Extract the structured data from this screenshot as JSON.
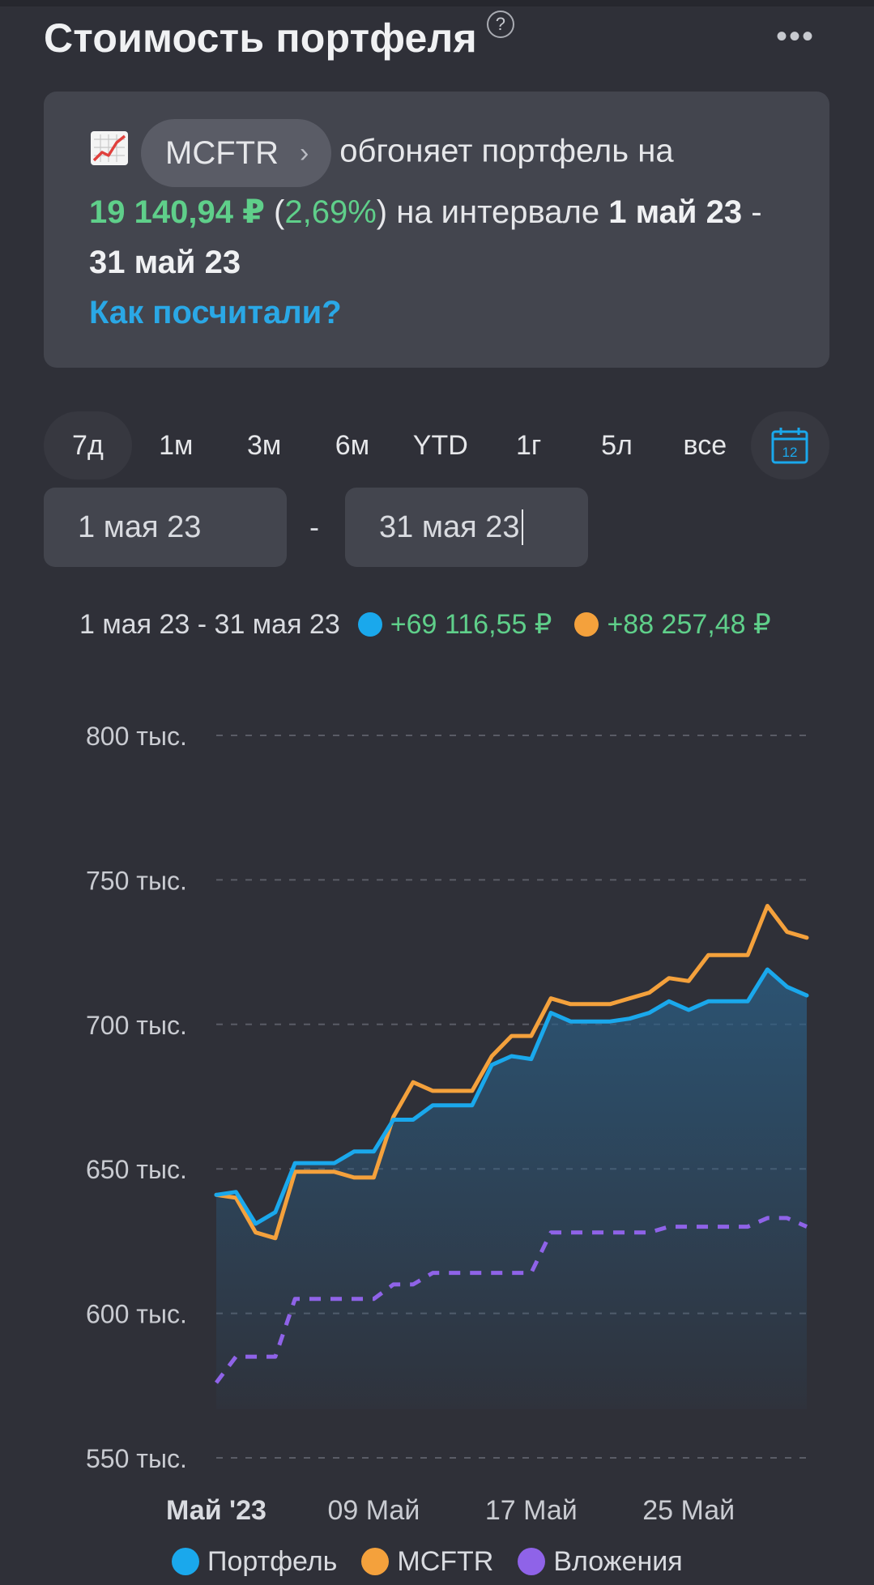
{
  "header": {
    "title": "Стоимость портфеля",
    "help_glyph": "?",
    "more_glyph": "•••"
  },
  "card": {
    "chip_label": "MCFTR",
    "text_overtakes": "обгоняет портфель на",
    "diff_amount": "19 140,94 ₽",
    "paren_open": "(",
    "diff_percent": "2,69%",
    "paren_close": ")",
    "text_interval": "на интервале",
    "interval_start": "1 май 23",
    "interval_dash": "-",
    "interval_end": "31 май 23",
    "how_link": "Как посчитали?"
  },
  "periods": [
    "7д",
    "1м",
    "3м",
    "6м",
    "YTD",
    "1г",
    "5л",
    "все"
  ],
  "calendar": {
    "day": "12",
    "icon": "calendar-icon"
  },
  "date_range": {
    "from": "1 мая 23",
    "separator": "-",
    "to": "31 мая 23"
  },
  "summary": {
    "range": "1 мая 23 - 31 мая 23",
    "portfolio_change": "+69 116,55 ₽",
    "mcftr_change": "+88 257,48 ₽"
  },
  "colors": {
    "portfolio": "#1aa8ec",
    "mcftr": "#f4a13c",
    "investments": "#8f63e8",
    "positive": "#5fcf8a",
    "accent": "#2aa8e6"
  },
  "chart_data": {
    "type": "line",
    "y_ticks": [
      "800 тыс.",
      "750 тыс.",
      "700 тыс.",
      "650 тыс.",
      "600 тыс.",
      "550 тыс."
    ],
    "y_tick_values": [
      800000,
      750000,
      700000,
      650000,
      600000,
      550000
    ],
    "ylim": [
      550000,
      800000
    ],
    "x_ticks": [
      "Май '23",
      "09 Май",
      "17 Май",
      "25 Май"
    ],
    "x_tick_days": [
      1,
      9,
      17,
      25
    ],
    "x_range_days": [
      1,
      31
    ],
    "grid": true,
    "series": [
      {
        "name": "Портфель",
        "x": [
          1,
          2,
          3,
          4,
          5,
          6,
          7,
          8,
          9,
          10,
          11,
          12,
          13,
          14,
          15,
          16,
          17,
          18,
          19,
          20,
          21,
          22,
          23,
          24,
          25,
          26,
          27,
          28,
          29,
          30,
          31
        ],
        "values": [
          641000,
          642000,
          631000,
          635000,
          652000,
          652000,
          652000,
          656000,
          656000,
          667000,
          667000,
          672000,
          672000,
          672000,
          686000,
          689000,
          688000,
          704000,
          701000,
          701000,
          701000,
          702000,
          704000,
          708000,
          705000,
          708000,
          708000,
          708000,
          719000,
          713000,
          710000
        ],
        "area": true
      },
      {
        "name": "MCFTR",
        "x": [
          1,
          2,
          3,
          4,
          5,
          6,
          7,
          8,
          9,
          10,
          11,
          12,
          13,
          14,
          15,
          16,
          17,
          18,
          19,
          20,
          21,
          22,
          23,
          24,
          25,
          26,
          27,
          28,
          29,
          30,
          31
        ],
        "values": [
          641000,
          640000,
          628000,
          626000,
          649000,
          649000,
          649000,
          647000,
          647000,
          668000,
          680000,
          677000,
          677000,
          677000,
          689000,
          696000,
          696000,
          709000,
          707000,
          707000,
          707000,
          709000,
          711000,
          716000,
          715000,
          724000,
          724000,
          724000,
          741000,
          732000,
          730000
        ]
      },
      {
        "name": "Вложения",
        "x": [
          1,
          2,
          3,
          4,
          5,
          6,
          7,
          8,
          9,
          10,
          11,
          12,
          13,
          14,
          15,
          16,
          17,
          18,
          19,
          20,
          21,
          22,
          23,
          24,
          25,
          26,
          27,
          28,
          29,
          30,
          31
        ],
        "values": [
          576000,
          585000,
          585000,
          585000,
          605000,
          605000,
          605000,
          605000,
          605000,
          610000,
          610000,
          614000,
          614000,
          614000,
          614000,
          614000,
          614000,
          628000,
          628000,
          628000,
          628000,
          628000,
          628000,
          630000,
          630000,
          630000,
          630000,
          630000,
          633000,
          633000,
          630000
        ],
        "dashed": true
      }
    ]
  },
  "legend": [
    "Портфель",
    "MCFTR",
    "Вложения"
  ]
}
